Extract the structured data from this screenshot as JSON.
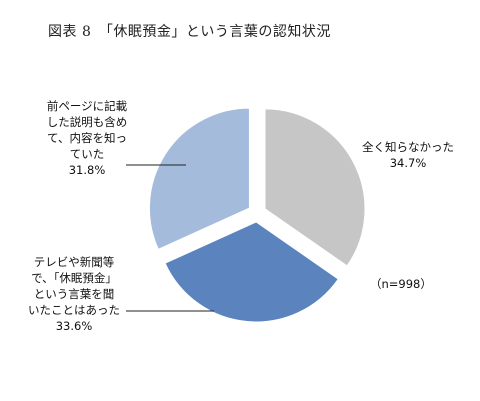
{
  "title": "図表 8　「休眠預金」という言葉の認知状況",
  "chart_data": {
    "type": "pie",
    "title": "図表 8　「休眠預金」という言葉の認知状況",
    "annotation": "（n=998）",
    "slices": [
      {
        "label": "全く知らなかった",
        "label_lines": [
          "全く知らなかった"
        ],
        "value": 34.7,
        "value_text": "34.7%",
        "color": "#c6c6c6"
      },
      {
        "label": "テレビや新聞等で、「休眠預金」という言葉を聞いたことはあった",
        "label_lines": [
          "テレビや新聞等",
          "で、「休眠預金」",
          "という言葉を聞",
          "いたことはあった"
        ],
        "value": 33.6,
        "value_text": "33.6%",
        "color": "#5b84bf"
      },
      {
        "label": "前ページに記載した説明も含めて、内容を知っていた",
        "label_lines": [
          "前ページに記載",
          "した説明も含め",
          "て、内容を知っ",
          "ていた"
        ],
        "value": 31.8,
        "value_text": "31.8%",
        "color": "#a4bbdc"
      }
    ]
  }
}
